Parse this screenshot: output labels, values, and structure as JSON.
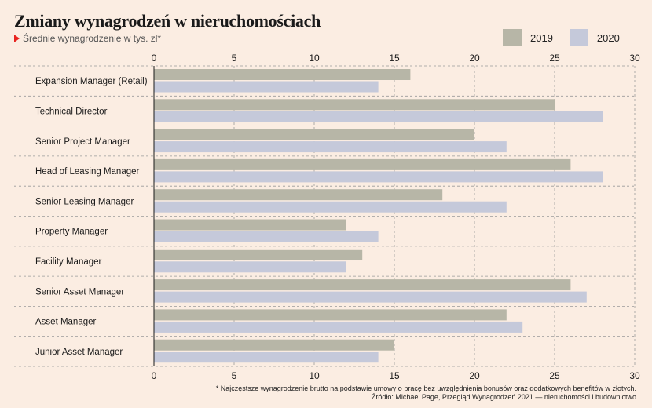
{
  "header": {
    "title": "Zmiany wynagrodzeń w nieruchomościach",
    "subtitle": "Średnie wynagrodzenie w tys. zł*"
  },
  "footnote": {
    "note": "* Najczęstsze wynagrodzenie brutto na podstawie umowy o pracę bez uwzględnienia bonusów oraz dodatkowych benefitów w złotych.",
    "source": "Źródło: Michael Page, Przegląd Wynagrodzeń 2021 — nieruchomości i budownictwo"
  },
  "colors": {
    "background": "#fbede2",
    "series_2019": "#b7b6a7",
    "series_2020": "#c5c9da",
    "grid": "#9a9a9a",
    "marker": "#e8231f"
  },
  "chart_data": {
    "type": "bar",
    "orientation": "horizontal",
    "categories": [
      "Expansion Manager (Retail)",
      "Technical Director",
      "Senior Project Manager",
      "Head of Leasing Manager",
      "Senior Leasing Manager",
      "Property Manager",
      "Facility Manager",
      "Senior Asset Manager",
      "Asset Manager",
      "Junior Asset Manager"
    ],
    "series": [
      {
        "name": "2019",
        "values": [
          16,
          25,
          20,
          26,
          18,
          12,
          13,
          26,
          22,
          15
        ]
      },
      {
        "name": "2020",
        "values": [
          14,
          28,
          22,
          28,
          22,
          14,
          12,
          27,
          23,
          14
        ]
      }
    ],
    "xlim": [
      0,
      30
    ],
    "xticks": [
      0,
      5,
      10,
      15,
      20,
      25,
      30
    ],
    "grid": true,
    "legend_position": "top-right"
  }
}
